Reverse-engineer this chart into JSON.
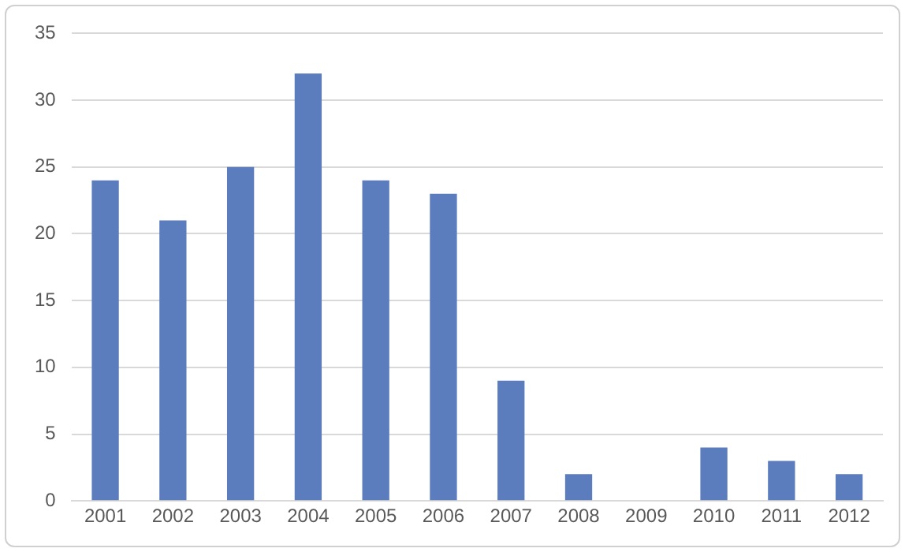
{
  "chart_data": {
    "type": "bar",
    "categories": [
      "2001",
      "2002",
      "2003",
      "2004",
      "2005",
      "2006",
      "2007",
      "2008",
      "2009",
      "2010",
      "2011",
      "2012"
    ],
    "values": [
      24,
      21,
      25,
      32,
      24,
      23,
      9,
      2,
      0,
      4,
      3,
      2
    ],
    "color": "#5b7cbd",
    "ylim": [
      0,
      35
    ],
    "yticks": [
      0,
      5,
      10,
      15,
      20,
      25,
      30,
      35
    ],
    "grid": "y"
  }
}
